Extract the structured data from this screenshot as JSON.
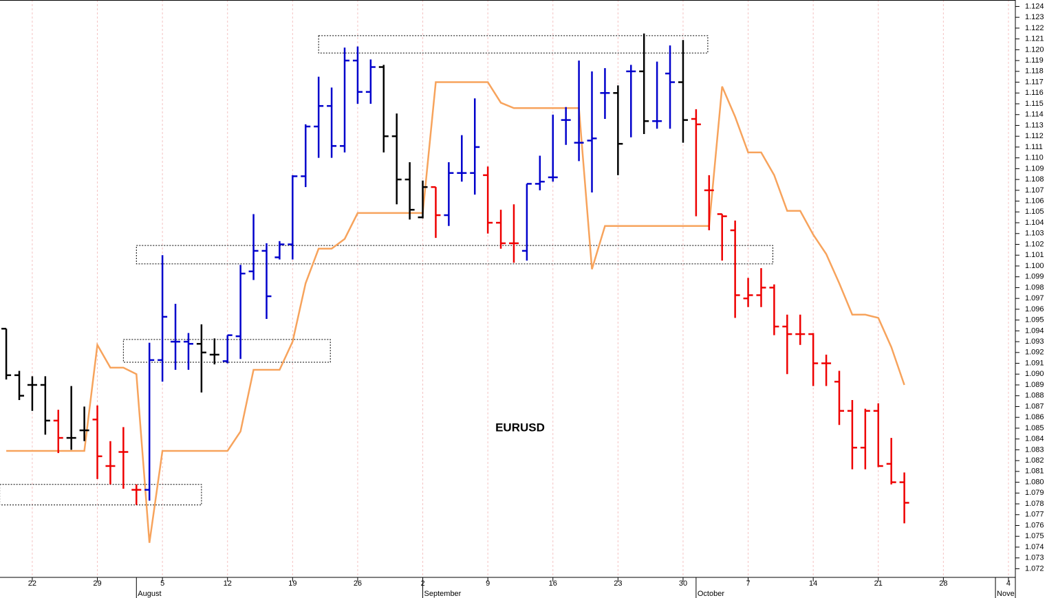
{
  "chart_data": {
    "type": "ohlc",
    "title": "EURUSD",
    "x": [
      -2,
      -1,
      0,
      1,
      2,
      3,
      4,
      5,
      6,
      7,
      8,
      9,
      10,
      11,
      12,
      13,
      14,
      15,
      16,
      17,
      18,
      19,
      20,
      21,
      22,
      23,
      24,
      25,
      26,
      27,
      28,
      29,
      30,
      31,
      32,
      33,
      34,
      35,
      36,
      37,
      38,
      39,
      40,
      41,
      42,
      43,
      44,
      45,
      46,
      47,
      48,
      49,
      50,
      51,
      52,
      53,
      54,
      55,
      56,
      57,
      58,
      59,
      60,
      61,
      62,
      63,
      64,
      65,
      66,
      67
    ],
    "open": [
      1.0942,
      1.0899,
      1.089,
      1.089,
      1.0857,
      1.0841,
      1.0848,
      1.0858,
      1.0815,
      1.0828,
      1.0793,
      1.0793,
      1.0913,
      1.093,
      1.093,
      1.0928,
      1.0918,
      1.0912,
      1.0935,
      1.0995,
      1.1014,
      1.1008,
      1.102,
      1.1083,
      1.1129,
      1.1148,
      1.1111,
      1.119,
      1.1161,
      1.1184,
      1.112,
      1.108,
      1.1045,
      1.1073,
      1.1047,
      1.1086,
      1.1086,
      1.1084,
      1.104,
      1.1021,
      1.1014,
      1.1076,
      1.1082,
      1.1135,
      1.1114,
      1.1116,
      1.116,
      1.116,
      1.118,
      1.118,
      1.1134,
      1.1178,
      1.117,
      1.1136,
      1.107,
      1.1048,
      1.1033,
      1.097,
      1.0973,
      1.098,
      1.0944,
      1.0937,
      1.0937,
      1.091,
      1.0893,
      1.0866,
      1.0832,
      1.0866,
      1.0817,
      1.08
    ],
    "high": [
      1.0942,
      1.0903,
      1.0898,
      1.0898,
      1.0867,
      1.0889,
      1.087,
      1.0871,
      1.0838,
      1.0851,
      1.0798,
      1.0929,
      1.101,
      1.0965,
      1.0938,
      1.0946,
      1.0933,
      1.0936,
      1.1001,
      1.1048,
      1.1021,
      1.1023,
      1.1084,
      1.1131,
      1.1175,
      1.1165,
      1.1202,
      1.1203,
      1.1191,
      1.1186,
      1.1141,
      1.1096,
      1.1079,
      1.1073,
      1.1096,
      1.1121,
      1.1155,
      1.1092,
      1.1052,
      1.1057,
      1.1076,
      1.1102,
      1.114,
      1.1147,
      1.119,
      1.118,
      1.1183,
      1.1167,
      1.1186,
      1.1215,
      1.1189,
      1.1204,
      1.1209,
      1.1145,
      1.1084,
      1.1048,
      1.1042,
      1.0989,
      1.0998,
      1.0983,
      1.0955,
      1.0955,
      1.0938,
      1.0918,
      1.0903,
      1.0876,
      1.0868,
      1.0873,
      1.0841,
      1.0809
    ],
    "low": [
      1.0895,
      1.0876,
      1.0866,
      1.0844,
      1.0827,
      1.083,
      1.0838,
      1.0803,
      1.0798,
      1.0794,
      1.0779,
      1.0783,
      1.0893,
      1.0904,
      1.0904,
      1.0883,
      1.0909,
      1.091,
      1.0914,
      1.0987,
      1.0951,
      1.1006,
      1.1006,
      1.1073,
      1.11,
      1.11,
      1.1105,
      1.115,
      1.115,
      1.1105,
      1.1057,
      1.1043,
      1.1044,
      1.1026,
      1.1037,
      1.1078,
      1.1066,
      1.103,
      1.1016,
      1.1003,
      1.1005,
      1.107,
      1.1078,
      1.1112,
      1.1097,
      1.1068,
      1.1136,
      1.1084,
      1.1119,
      1.1122,
      1.1127,
      1.1127,
      1.1114,
      1.1046,
      1.1033,
      1.1005,
      1.0952,
      1.0962,
      1.0962,
      1.0936,
      1.09,
      1.0927,
      1.0889,
      1.0889,
      1.0853,
      1.0812,
      1.0812,
      1.0814,
      1.0798,
      1.0762
    ],
    "close": [
      1.0899,
      1.088,
      1.089,
      1.0857,
      1.0841,
      1.0841,
      1.0848,
      1.0824,
      1.0815,
      1.0828,
      1.0793,
      1.0913,
      1.0953,
      1.093,
      1.0928,
      1.092,
      1.0918,
      1.0936,
      1.0993,
      1.1014,
      1.0972,
      1.102,
      1.1083,
      1.1129,
      1.1148,
      1.1111,
      1.119,
      1.1161,
      1.1184,
      1.112,
      1.108,
      1.1052,
      1.1073,
      1.1047,
      1.1086,
      1.1086,
      1.111,
      1.104,
      1.1021,
      1.1021,
      1.1076,
      1.1078,
      1.1082,
      1.1135,
      1.1114,
      1.1118,
      1.116,
      1.1113,
      1.118,
      1.1134,
      1.1134,
      1.117,
      1.1135,
      1.1131,
      1.107,
      1.1046,
      1.0973,
      1.0973,
      1.098,
      1.0944,
      1.0937,
      1.0937,
      1.091,
      1.091,
      1.0866,
      1.0832,
      1.0866,
      1.0815,
      1.08,
      1.0781
    ],
    "bar_colors": [
      "#000000",
      "#000000",
      "#000000",
      "#000000",
      "#ee0000",
      "#000000",
      "#000000",
      "#ee0000",
      "#ee0000",
      "#ee0000",
      "#ee0000",
      "#0000cc",
      "#0000cc",
      "#0000cc",
      "#0000cc",
      "#000000",
      "#000000",
      "#0000cc",
      "#0000cc",
      "#0000cc",
      "#0000cc",
      "#0000cc",
      "#0000cc",
      "#0000cc",
      "#0000cc",
      "#0000cc",
      "#0000cc",
      "#0000cc",
      "#0000cc",
      "#000000",
      "#000000",
      "#000000",
      "#000000",
      "#ee0000",
      "#0000cc",
      "#0000cc",
      "#0000cc",
      "#ee0000",
      "#ee0000",
      "#ee0000",
      "#0000cc",
      "#0000cc",
      "#0000cc",
      "#0000cc",
      "#0000cc",
      "#0000cc",
      "#0000cc",
      "#000000",
      "#0000cc",
      "#000000",
      "#0000cc",
      "#0000cc",
      "#000000",
      "#ee0000",
      "#ee0000",
      "#ee0000",
      "#ee0000",
      "#ee0000",
      "#ee0000",
      "#ee0000",
      "#ee0000",
      "#ee0000",
      "#ee0000",
      "#ee0000",
      "#ee0000",
      "#ee0000",
      "#ee0000",
      "#ee0000",
      "#ee0000",
      "#ee0000"
    ],
    "line": {
      "color": "#f7a35c",
      "x": [
        -2,
        4,
        5,
        6,
        7,
        8,
        9,
        10,
        15,
        16,
        17,
        19,
        20,
        21,
        22,
        23,
        24,
        25,
        30,
        31,
        35,
        36,
        37,
        42,
        43,
        44,
        52,
        53,
        54,
        55,
        56,
        57,
        58,
        59,
        60,
        61,
        62,
        63,
        64,
        65,
        66,
        67
      ],
      "values": [
        1.0829,
        1.0829,
        1.0927,
        1.0906,
        1.0906,
        1.09,
        1.0744,
        1.0829,
        1.0829,
        1.0847,
        1.0904,
        1.0904,
        1.093,
        1.0984,
        1.1016,
        1.1016,
        1.1025,
        1.1049,
        1.1049,
        1.117,
        1.117,
        1.1151,
        1.1146,
        1.1146,
        1.0997,
        1.1037,
        1.1037,
        1.1166,
        1.1138,
        1.1105,
        1.1105,
        1.1084,
        1.1051,
        1.1051,
        1.1029,
        1.1011,
        1.0984,
        1.0955,
        1.0955,
        1.0952,
        1.0925,
        1.089
      ]
    },
    "zones": [
      {
        "x": [
          -2.5,
          13
        ],
        "y": [
          1.0779,
          1.0798
        ]
      },
      {
        "x": [
          7,
          22.9
        ],
        "y": [
          1.0911,
          1.0932
        ]
      },
      {
        "x": [
          8,
          56.9
        ],
        "y": [
          1.1002,
          1.1019
        ]
      },
      {
        "x": [
          22,
          51.9
        ],
        "y": [
          1.1197,
          1.1213
        ]
      }
    ],
    "xlim": [
      -2.48,
      75.53
    ],
    "ylim": [
      1.0712,
      1.1246
    ],
    "xticks": [
      {
        "value": 0,
        "label": "22"
      },
      {
        "value": 5,
        "label": "29"
      },
      {
        "value": 10,
        "label": "5"
      },
      {
        "value": 15,
        "label": "12"
      },
      {
        "value": 20,
        "label": "19"
      },
      {
        "value": 25,
        "label": "26"
      },
      {
        "value": 30,
        "label": "2"
      },
      {
        "value": 35,
        "label": "9"
      },
      {
        "value": 40,
        "label": "16"
      },
      {
        "value": 45,
        "label": "23"
      },
      {
        "value": 50,
        "label": "30"
      },
      {
        "value": 55,
        "label": "7"
      },
      {
        "value": 60,
        "label": "14"
      },
      {
        "value": 65,
        "label": "21"
      },
      {
        "value": 70,
        "label": "28"
      },
      {
        "value": 75,
        "label": "4"
      }
    ],
    "month_ticks": [
      {
        "value": 8,
        "label": "August"
      },
      {
        "value": 30,
        "label": "September"
      },
      {
        "value": 51,
        "label": "October"
      },
      {
        "value": 74,
        "label": "Nove"
      }
    ],
    "yticks": [
      1.072,
      1.073,
      1.074,
      1.075,
      1.076,
      1.077,
      1.078,
      1.079,
      {
        "value": 1.08,
        "label": "1.080"
      },
      1.081,
      1.082,
      1.083,
      1.084,
      1.085,
      1.086,
      1.087,
      1.088,
      1.089,
      {
        "value": 1.09,
        "label": "1.090"
      },
      1.091,
      1.092,
      1.093,
      1.094,
      1.095,
      1.096,
      1.097,
      1.098,
      1.099,
      {
        "value": 1.1,
        "label": "1.100"
      },
      1.101,
      1.102,
      1.103,
      1.104,
      1.105,
      1.106,
      1.107,
      1.108,
      1.109,
      {
        "value": 1.11,
        "label": "1.110"
      },
      1.111,
      1.112,
      1.113,
      1.114,
      1.115,
      1.116,
      1.117,
      1.118,
      1.119,
      {
        "value": 1.12,
        "label": "1.120"
      },
      1.121,
      1.122,
      1.123,
      1.124
    ],
    "grid": "x"
  }
}
